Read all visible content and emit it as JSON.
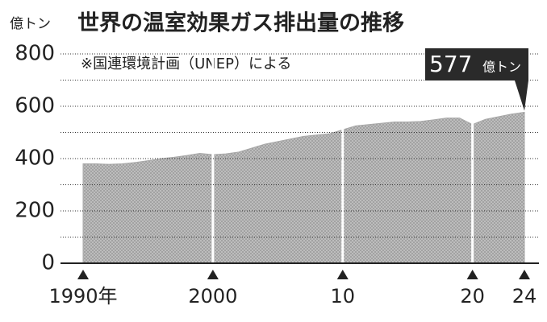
{
  "chart_data": {
    "type": "area",
    "title": "世界の温室効果ガス排出量の推移",
    "subtitle": "※国連環境計画（UNEP）による",
    "y_label": "億トン",
    "annotation": {
      "value": 577,
      "unit": "億トン"
    },
    "x": [
      1990,
      1991,
      1992,
      1993,
      1994,
      1995,
      1996,
      1997,
      1998,
      1999,
      2000,
      2001,
      2002,
      2003,
      2004,
      2005,
      2006,
      2007,
      2008,
      2009,
      2010,
      2011,
      2012,
      2013,
      2014,
      2015,
      2016,
      2017,
      2018,
      2019,
      2020,
      2021,
      2022,
      2023,
      2024
    ],
    "values": [
      380,
      380,
      378,
      380,
      385,
      392,
      400,
      405,
      412,
      420,
      415,
      418,
      425,
      440,
      455,
      465,
      475,
      485,
      490,
      495,
      510,
      525,
      530,
      535,
      540,
      540,
      542,
      548,
      555,
      555,
      530,
      550,
      560,
      570,
      577
    ],
    "color": "#a8a8a8",
    "xlim": [
      1990,
      2024
    ],
    "xticks": [
      {
        "value": 1990,
        "label": "1990年"
      },
      2000,
      {
        "value": 2010,
        "label": "10"
      },
      {
        "value": 2020,
        "label": "20"
      },
      {
        "value": 2024,
        "label": "24"
      }
    ],
    "ylim": [
      0,
      800
    ],
    "yticks": [
      0,
      200,
      400,
      600,
      800
    ],
    "minor_yticks": [
      100,
      300,
      500,
      700
    ],
    "grid": true
  }
}
